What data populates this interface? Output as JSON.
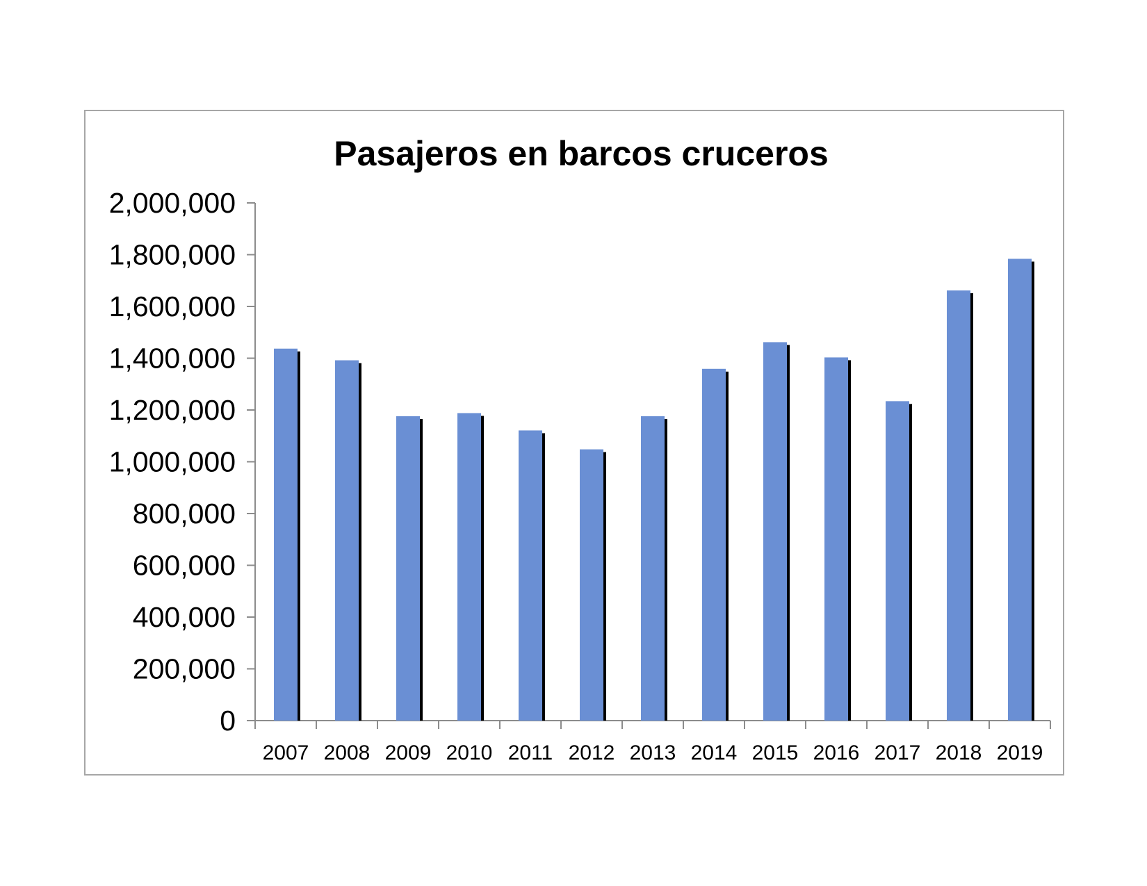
{
  "chart_data": {
    "type": "bar",
    "title": "Pasajeros en barcos cruceros",
    "xlabel": "",
    "ylabel": "",
    "categories": [
      "2007",
      "2008",
      "2009",
      "2010",
      "2011",
      "2012",
      "2013",
      "2014",
      "2015",
      "2016",
      "2017",
      "2018",
      "2019"
    ],
    "values": [
      1437000,
      1392000,
      1176000,
      1188000,
      1121000,
      1048000,
      1176000,
      1359000,
      1462000,
      1403000,
      1234000,
      1662000,
      1784000
    ],
    "ylim": [
      0,
      2000000
    ],
    "yticks": [
      "0",
      "200,000",
      "400,000",
      "600,000",
      "800,000",
      "1,000,000",
      "1,200,000",
      "1,400,000",
      "1,600,000",
      "1,800,000",
      "2,000,000"
    ],
    "ytick_values": [
      0,
      200000,
      400000,
      600000,
      800000,
      1000000,
      1200000,
      1400000,
      1600000,
      1800000,
      2000000
    ],
    "grid": false,
    "legend": "none",
    "colors": {
      "bar": "#6a8fd4",
      "bar_shadow": "#000000",
      "axis": "#8c8c8c",
      "frame": "#a6a6a6"
    }
  }
}
